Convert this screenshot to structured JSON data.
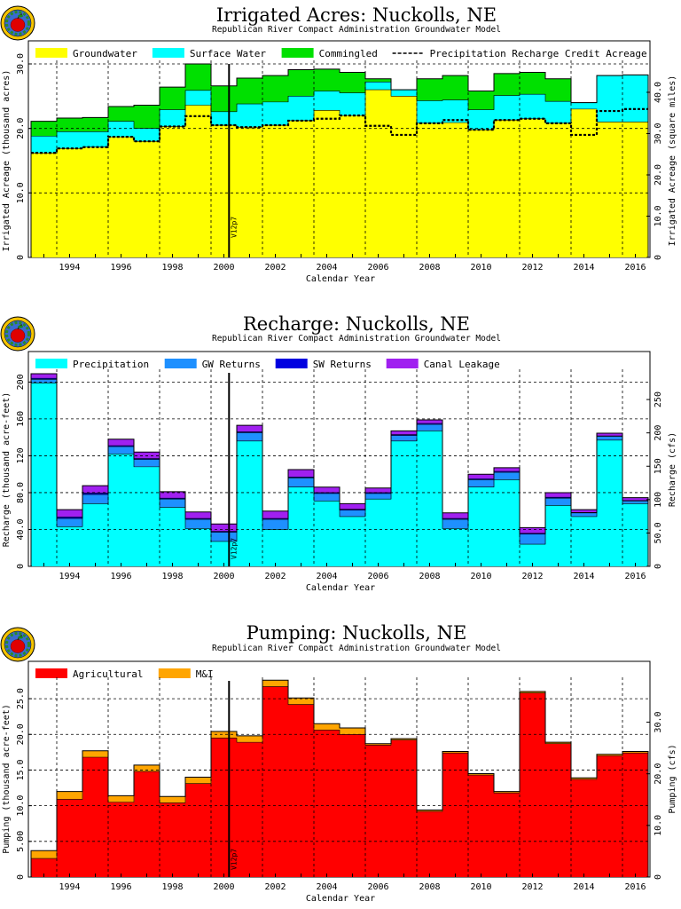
{
  "logo": "apple-globe-logo",
  "colors": {
    "groundwater": "#ffff00",
    "surface_water": "#00ffff",
    "commingled": "#00e000",
    "precipitation": "#00ffff",
    "gw_returns": "#1e90ff",
    "sw_returns": "#0000e0",
    "canal_leakage": "#a020f0",
    "agricultural": "#ff0000",
    "mi": "#ffa500",
    "grid": "#000000",
    "marker": "#000000"
  },
  "chart_data": [
    {
      "id": "irrigated",
      "type": "area",
      "title": "Irrigated Acres: Nuckolls, NE",
      "subtitle": "Republican River Compact Administration Groundwater Model",
      "xlabel": "Calendar Year",
      "ylabel": "Irrigated Acreage (thousand acres)",
      "ylabel2": "Irrigated Acreage (square miles)",
      "ylim": [
        0,
        30
      ],
      "ylim2": [
        0,
        46.875
      ],
      "yticks": [
        "0",
        "10.0",
        "20.0",
        "30.0"
      ],
      "yticks2": [
        "0",
        "10.0",
        "20.0",
        "30.0",
        "40.0"
      ],
      "x": [
        1993,
        1994,
        1995,
        1996,
        1997,
        1998,
        1999,
        2000,
        2001,
        2002,
        2003,
        2004,
        2005,
        2006,
        2007,
        2008,
        2009,
        2010,
        2011,
        2012,
        2013,
        2014,
        2015,
        2016
      ],
      "xticks": [
        "1994",
        "1996",
        "1998",
        "2000",
        "2002",
        "2004",
        "2006",
        "2008",
        "2010",
        "2012",
        "2014",
        "2016"
      ],
      "marker": "V12p7",
      "grid": true,
      "legend_position": "top",
      "series": [
        {
          "name": "Groundwater",
          "key": "groundwater",
          "values": [
            16.2,
            16.9,
            17.1,
            18.7,
            18.0,
            20.3,
            23.6,
            20.5,
            20.2,
            20.5,
            21.2,
            22.8,
            22.0,
            26.0,
            25.0,
            20.8,
            20.9,
            19.8,
            21.3,
            21.5,
            20.8,
            23.0,
            21.0,
            21.0
          ]
        },
        {
          "name": "Surface Water",
          "key": "surface_water",
          "values": [
            2.6,
            2.6,
            2.4,
            2.4,
            2.0,
            2.6,
            2.3,
            2.1,
            3.6,
            3.6,
            3.8,
            3.0,
            3.5,
            1.2,
            1.0,
            3.5,
            3.5,
            3.1,
            3.8,
            3.8,
            3.4,
            1.0,
            7.2,
            7.3
          ]
        },
        {
          "name": "Commingled",
          "key": "commingled",
          "values": [
            2.3,
            2.1,
            2.2,
            2.3,
            3.6,
            3.5,
            4.1,
            4.0,
            4.0,
            4.1,
            4.1,
            3.4,
            3.2,
            0.5,
            0,
            3.4,
            3.8,
            2.9,
            3.4,
            3.4,
            3.5,
            0,
            0,
            0
          ]
        }
      ],
      "lines": [
        {
          "name": "Precipitation Recharge Credit Acreage",
          "key": "precip_credit",
          "style": "dashed",
          "values": [
            16.2,
            16.9,
            17.1,
            18.7,
            18.0,
            20.3,
            21.9,
            20.5,
            20.2,
            20.5,
            21.2,
            21.5,
            22.0,
            20.4,
            19.0,
            20.8,
            21.3,
            19.8,
            21.3,
            21.5,
            20.8,
            19.0,
            22.7,
            23.0
          ]
        }
      ]
    },
    {
      "id": "recharge",
      "type": "area",
      "title": "Recharge: Nuckolls, NE",
      "subtitle": "Republican River Compact Administration Groundwater Model",
      "xlabel": "Calendar Year",
      "ylabel": "Recharge (thousand acre-feet)",
      "ylabel2": "Recharge (cfs)",
      "ylim": [
        0,
        210
      ],
      "ylim2": [
        0,
        290
      ],
      "yticks": [
        "0",
        "40.0",
        "80.0",
        "120",
        "160",
        "200"
      ],
      "yticks2": [
        "0",
        "50.0",
        "100",
        "150",
        "200",
        "250"
      ],
      "x": [
        1993,
        1994,
        1995,
        1996,
        1997,
        1998,
        1999,
        2000,
        2001,
        2002,
        2003,
        2004,
        2005,
        2006,
        2007,
        2008,
        2009,
        2010,
        2011,
        2012,
        2013,
        2014,
        2015,
        2016
      ],
      "xticks": [
        "1994",
        "1996",
        "1998",
        "2000",
        "2002",
        "2004",
        "2006",
        "2008",
        "2010",
        "2012",
        "2014",
        "2016"
      ],
      "marker": "V12p7",
      "grid": true,
      "legend_position": "top",
      "series": [
        {
          "name": "Precipitation",
          "key": "precipitation",
          "values": [
            199,
            43,
            68,
            122,
            108,
            64,
            41,
            27,
            136,
            40,
            86,
            71,
            54,
            73,
            136,
            147,
            41,
            86,
            94,
            24,
            66,
            54,
            137,
            68
          ]
        },
        {
          "name": "GW Returns",
          "key": "gw_returns",
          "values": [
            4,
            9,
            10,
            8,
            8,
            9,
            10,
            10,
            9,
            11,
            10,
            8,
            7,
            6,
            6,
            7,
            10,
            8,
            8,
            11,
            8,
            4,
            4,
            3
          ]
        },
        {
          "name": "SW Returns",
          "key": "sw_returns",
          "values": [
            1,
            1.5,
            1.5,
            1,
            1,
            1,
            1,
            1,
            1,
            1,
            1,
            1,
            1,
            1,
            1,
            1,
            1,
            1,
            1,
            1,
            1,
            0.5,
            0.5,
            0.5
          ]
        },
        {
          "name": "Canal Leakage",
          "key": "canal_leakage",
          "values": [
            5,
            8,
            8,
            7,
            7,
            7,
            7,
            8,
            7,
            8,
            8,
            6,
            6,
            5,
            4,
            4,
            6,
            5,
            4,
            6,
            5,
            3,
            3,
            3
          ]
        }
      ]
    },
    {
      "id": "pumping",
      "type": "area",
      "title": "Pumping: Nuckolls, NE",
      "subtitle": "Republican River Compact Administration Groundwater Model",
      "xlabel": "Calendar Year",
      "ylabel": "Pumping (thousand acre-feet)",
      "ylabel2": "Pumping (cfs)",
      "ylim": [
        0,
        27.5
      ],
      "ylim2": [
        0,
        38
      ],
      "yticks": [
        "0",
        "5.00",
        "10.0",
        "15.0",
        "20.0",
        "25.0"
      ],
      "yticks2": [
        "0",
        "10.0",
        "20.0",
        "30.0"
      ],
      "x": [
        1993,
        1994,
        1995,
        1996,
        1997,
        1998,
        1999,
        2000,
        2001,
        2002,
        2003,
        2004,
        2005,
        2006,
        2007,
        2008,
        2009,
        2010,
        2011,
        2012,
        2013,
        2014,
        2015,
        2016
      ],
      "xticks": [
        "1994",
        "1996",
        "1998",
        "2000",
        "2002",
        "2004",
        "2006",
        "2008",
        "2010",
        "2012",
        "2014",
        "2016"
      ],
      "marker": "V12p7",
      "grid": true,
      "legend_position": "top",
      "series": [
        {
          "name": "Agricultural",
          "key": "agricultural",
          "values": [
            2.6,
            10.9,
            16.8,
            10.5,
            14.8,
            10.4,
            13.1,
            19.5,
            18.9,
            26.7,
            24.2,
            20.6,
            20.0,
            18.5,
            19.2,
            9.2,
            17.4,
            14.3,
            11.8,
            25.8,
            18.7,
            13.7,
            17.0,
            17.4
          ]
        },
        {
          "name": "M&I",
          "key": "mi",
          "values": [
            1.1,
            1.1,
            0.9,
            0.9,
            0.9,
            0.9,
            0.9,
            0.9,
            0.9,
            0.9,
            0.9,
            0.9,
            0.9,
            0.2,
            0.2,
            0.2,
            0.2,
            0.2,
            0.2,
            0.2,
            0.2,
            0.2,
            0.2,
            0.2
          ]
        }
      ]
    }
  ]
}
